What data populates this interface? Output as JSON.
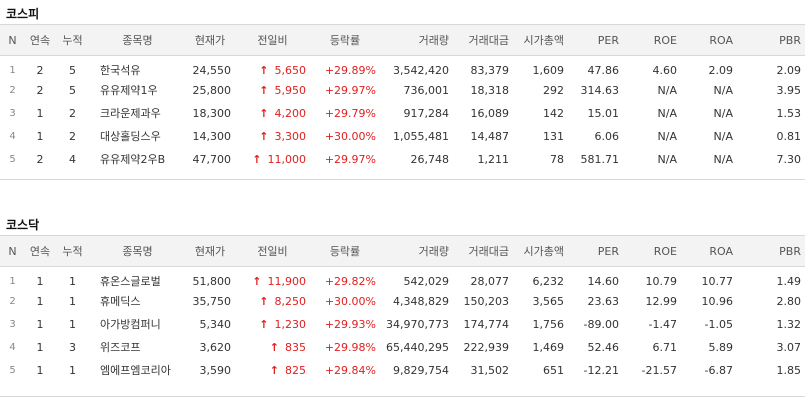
{
  "kospi": {
    "title": "코스피",
    "headers": [
      "N",
      "연속",
      "누적",
      "종목명",
      "현재가",
      "전일비",
      "등락률",
      "거래량",
      "거래대금",
      "시가총액",
      "PER",
      "ROE",
      "ROA",
      "PBR"
    ],
    "rows": [
      {
        "n": "1",
        "cont": "2",
        "cum": "5",
        "name": "한국석유",
        "price": "24,550",
        "diff": "5,650",
        "rate": "+29.89%",
        "vol": "3,542,420",
        "amount": "83,379",
        "mcap": "1,609",
        "per": "47.86",
        "roe": "4.60",
        "roa": "2.09",
        "pbr": "2.09"
      },
      {
        "n": "2",
        "cont": "2",
        "cum": "5",
        "name": "유유제약1우",
        "price": "25,800",
        "diff": "5,950",
        "rate": "+29.97%",
        "vol": "736,001",
        "amount": "18,318",
        "mcap": "292",
        "per": "314.63",
        "roe": "N/A",
        "roa": "N/A",
        "pbr": "3.95"
      },
      {
        "n": "3",
        "cont": "1",
        "cum": "2",
        "name": "크라운제과우",
        "price": "18,300",
        "diff": "4,200",
        "rate": "+29.79%",
        "vol": "917,284",
        "amount": "16,089",
        "mcap": "142",
        "per": "15.01",
        "roe": "N/A",
        "roa": "N/A",
        "pbr": "1.53"
      },
      {
        "n": "4",
        "cont": "1",
        "cum": "2",
        "name": "대상홀딩스우",
        "price": "14,300",
        "diff": "3,300",
        "rate": "+30.00%",
        "vol": "1,055,481",
        "amount": "14,487",
        "mcap": "131",
        "per": "6.06",
        "roe": "N/A",
        "roa": "N/A",
        "pbr": "0.81"
      },
      {
        "n": "5",
        "cont": "2",
        "cum": "4",
        "name": "유유제약2우B",
        "price": "47,700",
        "diff": "11,000",
        "rate": "+29.97%",
        "vol": "26,748",
        "amount": "1,211",
        "mcap": "78",
        "per": "581.71",
        "roe": "N/A",
        "roa": "N/A",
        "pbr": "7.30"
      }
    ]
  },
  "kosdaq": {
    "title": "코스닥",
    "headers": [
      "N",
      "연속",
      "누적",
      "종목명",
      "현재가",
      "전일비",
      "등락률",
      "거래량",
      "거래대금",
      "시가총액",
      "PER",
      "ROE",
      "ROA",
      "PBR"
    ],
    "rows": [
      {
        "n": "1",
        "cont": "1",
        "cum": "1",
        "name": "휴온스글로벌",
        "price": "51,800",
        "diff": "11,900",
        "rate": "+29.82%",
        "vol": "542,029",
        "amount": "28,077",
        "mcap": "6,232",
        "per": "14.60",
        "roe": "10.79",
        "roa": "10.77",
        "pbr": "1.49"
      },
      {
        "n": "2",
        "cont": "1",
        "cum": "1",
        "name": "휴메딕스",
        "price": "35,750",
        "diff": "8,250",
        "rate": "+30.00%",
        "vol": "4,348,829",
        "amount": "150,203",
        "mcap": "3,565",
        "per": "23.63",
        "roe": "12.99",
        "roa": "10.96",
        "pbr": "2.80"
      },
      {
        "n": "3",
        "cont": "1",
        "cum": "1",
        "name": "아가방컴퍼니",
        "price": "5,340",
        "diff": "1,230",
        "rate": "+29.93%",
        "vol": "34,970,773",
        "amount": "174,774",
        "mcap": "1,756",
        "per": "-89.00",
        "roe": "-1.47",
        "roa": "-1.05",
        "pbr": "1.32"
      },
      {
        "n": "4",
        "cont": "1",
        "cum": "3",
        "name": "위즈코프",
        "price": "3,620",
        "diff": "835",
        "rate": "+29.98%",
        "vol": "65,440,295",
        "amount": "222,939",
        "mcap": "1,469",
        "per": "52.46",
        "roe": "6.71",
        "roa": "5.89",
        "pbr": "3.07"
      },
      {
        "n": "5",
        "cont": "1",
        "cum": "1",
        "name": "엠에프엠코리아",
        "price": "3,590",
        "diff": "825",
        "rate": "+29.84%",
        "vol": "9,829,754",
        "amount": "31,502",
        "mcap": "651",
        "per": "-12.21",
        "roe": "-21.57",
        "roa": "-6.87",
        "pbr": "1.85"
      }
    ]
  },
  "icons": {
    "up_arrow": "up-arrow-icon"
  },
  "colors": {
    "rise": "#e02020",
    "header_bg": "#f3f3f3",
    "border": "#d8d8d8"
  }
}
